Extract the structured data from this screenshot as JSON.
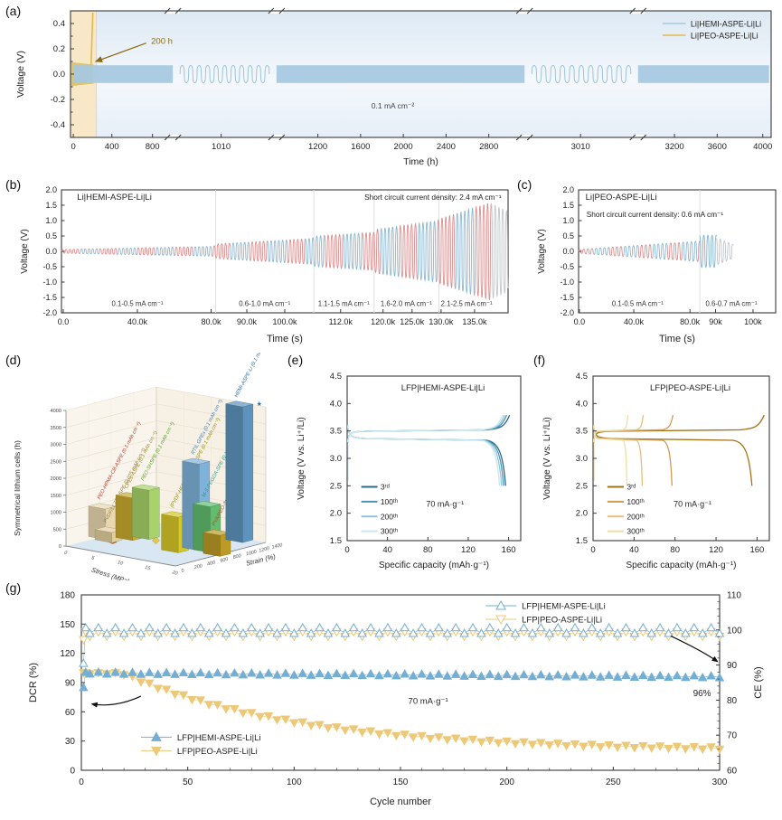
{
  "chart_data": [
    {
      "id": "a",
      "tag": "(a)",
      "type": "line",
      "xlabel": "Time (h)",
      "ylabel": "Voltage (V)",
      "ylim": [
        -0.5,
        0.5
      ],
      "yticks": [
        "0.4",
        "0.2",
        "0.0",
        "-0.2",
        "-0.4"
      ],
      "xticks": [
        {
          "label": "0",
          "f": 0.004
        },
        {
          "label": "400",
          "f": 0.059
        },
        {
          "label": "800",
          "f": 0.117
        },
        {
          "label": "1010",
          "f": 0.215
        },
        {
          "label": "1200",
          "f": 0.353
        },
        {
          "label": "1600",
          "f": 0.414
        },
        {
          "label": "2000",
          "f": 0.475
        },
        {
          "label": "2400",
          "f": 0.536
        },
        {
          "label": "2800",
          "f": 0.597
        },
        {
          "label": "3010",
          "f": 0.728
        },
        {
          "label": "3200",
          "f": 0.862
        },
        {
          "label": "3600",
          "f": 0.923
        },
        {
          "label": "4000",
          "f": 0.988
        }
      ],
      "axis_breaks": [
        0.146,
        0.294,
        0.648,
        0.81
      ],
      "squiggle_zones": [
        [
          0.146,
          0.294
        ],
        [
          0.648,
          0.81
        ]
      ],
      "band_segments": [
        [
          0.004,
          0.146
        ],
        [
          0.294,
          0.648
        ],
        [
          0.81,
          0.997
        ]
      ],
      "series": [
        {
          "name": "Li|HEMI-ASPE-Li|Li",
          "color": "#a6c9e0",
          "polarization_v": 0.07,
          "duration_h": 4000
        },
        {
          "name": "Li|PEO-ASPE-Li|Li",
          "color": "#e3b94e",
          "polarization_v": 0.09,
          "short_circuit_h": 200
        }
      ],
      "annotation": "0.1 mA cm⁻²",
      "callout": {
        "text": "200 h",
        "color": "#8a6a10"
      },
      "peo_region": {
        "end_f": 0.037,
        "spike_f": 0.0293,
        "fill": "#f9e8c8",
        "edge": "#ecd193"
      }
    },
    {
      "id": "b",
      "tag": "(b)",
      "type": "line",
      "title": "Li|HEMI-ASPE-Li|Li",
      "annotation": "Short circuit current density: 2.4 mA cm⁻¹",
      "xlabel": "Time (s)",
      "ylabel": "Voltage (V)",
      "ylim": [
        -2.0,
        2.0
      ],
      "yticks": [
        "2.0",
        "1.5",
        "1.0",
        "0.5",
        "0.0",
        "-0.5",
        "-1.0",
        "-1.5",
        "-2.0"
      ],
      "xticks": [
        {
          "label": "0.0",
          "f": 0.004
        },
        {
          "label": "40.0k",
          "f": 0.17
        },
        {
          "label": "80.0k",
          "f": 0.335
        },
        {
          "label": "90.0k",
          "f": 0.415
        },
        {
          "label": "100.0k",
          "f": 0.5
        },
        {
          "label": "112.0k",
          "f": 0.625
        },
        {
          "label": "120.0k",
          "f": 0.72
        },
        {
          "label": "125.0k",
          "f": 0.785
        },
        {
          "label": "130.0k",
          "f": 0.85
        },
        {
          "label": "135.0k",
          "f": 0.925
        }
      ],
      "region_bounds": [
        0.345,
        0.565,
        0.7,
        0.845
      ],
      "regions": [
        {
          "label": "0.1-0.5 mA cm⁻¹",
          "f": 0.17
        },
        {
          "label": "0.6-1.0 mA cm⁻¹",
          "f": 0.455
        },
        {
          "label": "1.1-1.5 mA cm⁻¹",
          "f": 0.632
        },
        {
          "label": "1.6-2.0 mA cm⁻¹",
          "f": 0.772
        },
        {
          "label": "2.1-2.5 mA cm⁻¹",
          "f": 0.907
        }
      ],
      "amp_profile": [
        [
          0,
          0.06
        ],
        [
          0.34,
          0.16
        ],
        [
          0.35,
          0.24
        ],
        [
          0.56,
          0.42
        ],
        [
          0.57,
          0.5
        ],
        [
          0.7,
          0.62
        ],
        [
          0.705,
          0.72
        ],
        [
          0.84,
          1.0
        ],
        [
          0.85,
          1.08
        ],
        [
          0.962,
          1.6
        ]
      ],
      "gray_tail": {
        "start": 0.962,
        "end": 1.0,
        "amp0": 1.55,
        "amp1": 1.3
      },
      "wave_period": 0.0085,
      "colors": {
        "red": "#d89090",
        "blue": "#8bb9d4",
        "gray": "#c2c6c9"
      }
    },
    {
      "id": "c",
      "tag": "(c)",
      "type": "line",
      "title": "Li|PEO-ASPE-Li|Li",
      "annotation": "Short circuit current density: 0.6 mA cm⁻¹",
      "xlabel": "Time (s)",
      "ylabel": "Voltage (V)",
      "ylim": [
        -2.0,
        2.0
      ],
      "yticks": [
        "2.0",
        "1.5",
        "1.0",
        "0.5",
        "0.0",
        "-0.5",
        "-1.0",
        "-1.5",
        "-2.0"
      ],
      "xticks": [
        {
          "label": "0.0",
          "f": 0.004
        },
        {
          "label": "40.0k",
          "f": 0.28
        },
        {
          "label": "80.0k",
          "f": 0.565
        },
        {
          "label": "90k",
          "f": 0.695
        },
        {
          "label": "100k",
          "f": 0.885
        }
      ],
      "region_bounds": [
        0.615
      ],
      "regions": [
        {
          "label": "0.1-0.5 mA cm⁻¹",
          "f": 0.3
        },
        {
          "label": "0.6-0.7 mA cm⁻¹",
          "f": 0.775
        }
      ],
      "amp_profile": [
        [
          0,
          0.06
        ],
        [
          0.54,
          0.3
        ],
        [
          0.6,
          0.33
        ]
      ],
      "big_block": {
        "start": 0.615,
        "end": 0.7,
        "amp": 0.52
      },
      "gray_tail": {
        "start": 0.7,
        "end": 0.785,
        "amp0": 0.45,
        "amp1": 0.22
      },
      "wave_period": 0.021,
      "colors": {
        "red": "#d89090",
        "blue": "#8bb9d4",
        "gray": "#c2c6c9"
      }
    },
    {
      "id": "d",
      "tag": "(d)",
      "type": "bar3d",
      "ylabel": "Symmetrical lithium cells (h)",
      "xlabel": "Stress (MPa)",
      "zlabel": "Strain (%)",
      "ylim": [
        0,
        4000
      ],
      "yticks": [
        "0",
        "500",
        "1000",
        "1500",
        "2000",
        "2500",
        "3000",
        "3500",
        "4000"
      ],
      "stress_ticks": [
        "0",
        "5",
        "10",
        "15",
        "20"
      ],
      "strain_ticks": [
        "0",
        "200",
        "400",
        "600",
        "800",
        "1000",
        "1200",
        "1400"
      ],
      "star": "★",
      "bars": [
        {
          "name": "PEO-HPMA-CB-ASPE (0.1 mAh cm⁻²)",
          "hours": 900,
          "stress": 12,
          "strain": 0,
          "color": "#ead9b0",
          "label_color": "#b23b2e"
        },
        {
          "name": "PVDF/LLZTO SPE (0.025 mAh cm⁻²)",
          "hours": 300,
          "stress": 13,
          "strain": 150,
          "color": "#e2cf9e",
          "label_color": "#8f7f4a"
        },
        {
          "name": "CPEs-ASPE (0.1 mAh cm⁻²)",
          "hours": 1250,
          "stress": 10,
          "strain": 250,
          "color": "#c9a92e",
          "label_color": "#9a8d1f"
        },
        {
          "name": "PEO-SHSPE (0.1 mAh cm⁻²)",
          "hours": 1450,
          "stress": 8,
          "strain": 350,
          "color": "#a7d36a",
          "label_color": "#58a02c"
        },
        {
          "name": "(PVDF-HFP)-ADN-FEC-SPE (0.1 mAh cm⁻²)",
          "hours": 1050,
          "stress": 12,
          "strain": 1000,
          "color": "#d6c728",
          "label_color": "#8f8f12"
        },
        {
          "name": "RTIL GPEs (0.1 mAh cm⁻²)",
          "hours": 2550,
          "stress": 9,
          "strain": 1100,
          "color": "#7fb2d8",
          "label_color": "#3f7fae"
        },
        {
          "name": "M-S-PEGDA-SPE (0.1 mAh cm⁻²)",
          "hours": 1350,
          "stress": 9,
          "strain": 1250,
          "color": "#62bd6e",
          "label_color": "#2d9e8a"
        },
        {
          "name": "PVA/PEO-3a-BN (0.1 mAh cm⁻²)",
          "hours": 620,
          "stress": 10,
          "strain": 1450,
          "color": "#bb9b26",
          "label_color": "#8f5a28"
        },
        {
          "name": "HEMI-ASPE-Li (0.1 mAh cm⁻²)",
          "hours": 4000,
          "stress": 1,
          "strain": 1200,
          "color": "#5e93bd",
          "label_color": "#2e6da0",
          "star": true
        }
      ],
      "floor_markers": [
        {
          "shape": "cube",
          "stress": 14,
          "strain": 250,
          "color": "#c08040"
        },
        {
          "shape": "diamond",
          "stress": 9,
          "strain": 550,
          "color": "#e8c84a"
        }
      ]
    },
    {
      "id": "e",
      "tag": "(e)",
      "type": "line",
      "title": "LFP|HEMI-ASPE-Li|Li",
      "xlabel": "Specific capacity (mAh·g⁻¹)",
      "ylabel": "Voltage (V vs. Li⁺/Li)",
      "ylim": [
        1.5,
        4.5
      ],
      "xlim": [
        0,
        172
      ],
      "yticks": [
        "4.5",
        "4.0",
        "3.5",
        "3.0",
        "2.5",
        "2.0",
        "1.5"
      ],
      "xticks": [
        "0",
        "40",
        "80",
        "120",
        "160"
      ],
      "annotation": "70 mA·g⁻¹",
      "series": [
        {
          "name": "3ʳᵈ",
          "color": "#2c6786",
          "charge_cap": 161,
          "discharge_cap": 157
        },
        {
          "name": "100ᵗʰ",
          "color": "#4e95b5",
          "charge_cap": 158,
          "discharge_cap": 155
        },
        {
          "name": "200ᵗʰ",
          "color": "#8ec6da",
          "charge_cap": 156,
          "discharge_cap": 153
        },
        {
          "name": "300ᵗʰ",
          "color": "#c9e7f0",
          "charge_cap": 154,
          "discharge_cap": 151
        }
      ]
    },
    {
      "id": "f",
      "tag": "(f)",
      "type": "line",
      "title": "LFP|PEO-ASPE-Li|Li",
      "xlabel": "Specific capacity (mAh·g⁻¹)",
      "ylabel": "Voltage (V vs. Li⁺/Li)",
      "ylim": [
        1.5,
        4.5
      ],
      "xlim": [
        0,
        172
      ],
      "yticks": [
        "4.5",
        "4.0",
        "3.5",
        "3.0",
        "2.5",
        "2.0",
        "1.5"
      ],
      "xticks": [
        "0",
        "40",
        "80",
        "120",
        "160"
      ],
      "annotation": "70 mA·g⁻¹",
      "series": [
        {
          "name": "3ʳᵈ",
          "color": "#a2731a",
          "charge_cap": 167,
          "discharge_cap": 155
        },
        {
          "name": "100ᵗʰ",
          "color": "#d09a50",
          "charge_cap": 78,
          "discharge_cap": 77
        },
        {
          "name": "200ᵗʰ",
          "color": "#e2c07e",
          "charge_cap": 49,
          "discharge_cap": 48
        },
        {
          "name": "300ᵗʰ",
          "color": "#f0dea2",
          "charge_cap": 34,
          "discharge_cap": 33
        }
      ]
    },
    {
      "id": "g",
      "tag": "(g)",
      "type": "scatter",
      "xlabel": "Cycle number",
      "ylabel_left": "DCR (%)",
      "ylabel_right": "CE (%)",
      "ylim_left": [
        0,
        180
      ],
      "ylim_right": [
        60,
        110
      ],
      "xlim": [
        0,
        300
      ],
      "yticks_left": [
        "180",
        "150",
        "120",
        "90",
        "60",
        "30",
        "0"
      ],
      "yticks_right": [
        "110",
        "100",
        "90",
        "80",
        "70",
        "60"
      ],
      "xticks": [
        "0",
        "50",
        "100",
        "150",
        "200",
        "250",
        "300"
      ],
      "annotation": "70 mA·g⁻¹",
      "final_label": "96%",
      "legend_top": [
        {
          "label": "LFP|HEMI-ASPE-Li|Li",
          "marker": "triangle-up-open",
          "color": "#74aed3"
        },
        {
          "label": "LFP|PEO-ASPE-Li|Li",
          "marker": "triangle-down-open",
          "color": "#ecc979"
        }
      ],
      "legend_bottom": [
        {
          "label": "LFP|HEMI-ASPE-Li|Li",
          "marker": "triangle-up-filled",
          "color": "#74aed3"
        },
        {
          "label": "LFP|PEO-ASPE-Li|Li",
          "marker": "triangle-down-filled",
          "color": "#ecc979"
        }
      ],
      "series": [
        {
          "name": "DCR LFP|HEMI-ASPE-Li|Li",
          "axis": "left",
          "start": 85,
          "steady": 100,
          "end": 96,
          "color": "#74aed3",
          "marker": "up",
          "fill": true
        },
        {
          "name": "DCR LFP|PEO-ASPE-Li|Li",
          "axis": "left",
          "start": 100,
          "steady": 100,
          "end": 21,
          "color": "#ecc979",
          "marker": "down",
          "fill": true,
          "decay_start": 18,
          "decay_tau": 82,
          "floor": 20
        },
        {
          "name": "CE LFP|HEMI-ASPE-Li|Li",
          "axis": "right",
          "start": 90.5,
          "steady": 99.6,
          "end": 99.6,
          "color": "#74aed3",
          "marker": "up",
          "fill": false
        },
        {
          "name": "CE LFP|PEO-ASPE-Li|Li",
          "axis": "right",
          "start": 97.2,
          "steady": 98.9,
          "end": 98.9,
          "color": "#ecc979",
          "marker": "down",
          "fill": false
        }
      ]
    }
  ]
}
